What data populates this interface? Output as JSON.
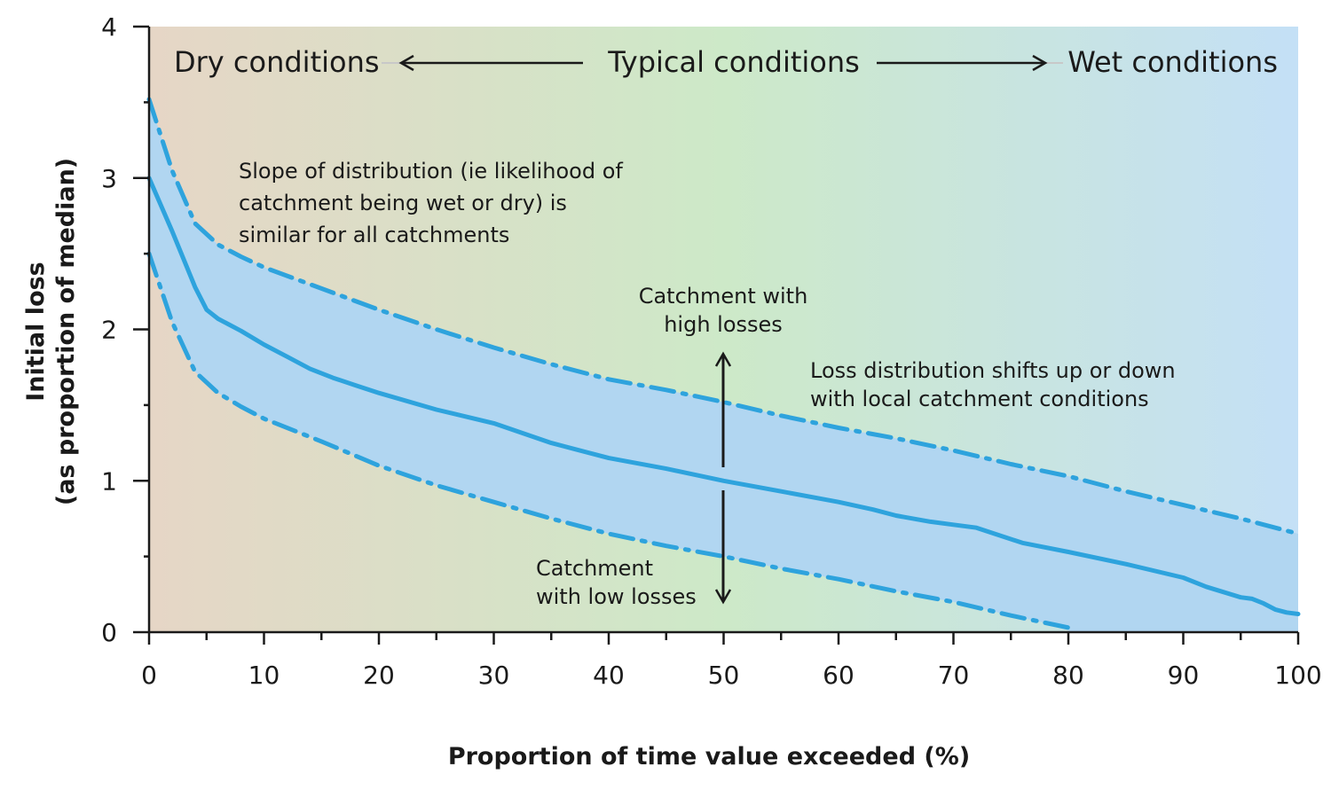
{
  "chart_data": {
    "type": "line",
    "title": "",
    "xlabel": "Proportion of time value exceeded (%)",
    "ylabel_lines": [
      "Initial loss",
      "(as proportion of median)"
    ],
    "xlim": [
      0,
      100
    ],
    "ylim": [
      0,
      4
    ],
    "x_ticks": [
      0,
      10,
      20,
      30,
      40,
      50,
      60,
      70,
      80,
      90,
      100
    ],
    "y_ticks": [
      0,
      1,
      2,
      3,
      4
    ],
    "grid": false,
    "background_gradient": [
      "#e6d6c6",
      "#cde9c8",
      "#c4e0f6"
    ],
    "band_color": "#b1d6f1",
    "line_color": "#2ea3dd",
    "series": [
      {
        "style": "solid",
        "x": [
          0,
          2,
          4,
          5,
          6,
          8,
          10,
          12,
          14,
          16,
          18,
          20,
          25,
          30,
          35,
          40,
          45,
          50,
          55,
          60,
          63,
          65,
          68,
          70,
          72,
          76,
          80,
          85,
          90,
          92,
          95,
          96,
          97,
          98,
          99,
          100
        ],
        "y": [
          3.0,
          2.65,
          2.28,
          2.13,
          2.07,
          1.99,
          1.9,
          1.82,
          1.74,
          1.68,
          1.63,
          1.58,
          1.47,
          1.38,
          1.25,
          1.15,
          1.08,
          1.0,
          0.93,
          0.86,
          0.81,
          0.77,
          0.73,
          0.71,
          0.69,
          0.59,
          0.53,
          0.45,
          0.36,
          0.3,
          0.23,
          0.22,
          0.19,
          0.15,
          0.13,
          0.12
        ]
      },
      {
        "style": "dash-dot",
        "x": [
          0,
          2,
          4,
          6,
          8,
          10,
          15,
          20,
          25,
          30,
          35,
          40,
          45,
          50,
          55,
          60,
          65,
          70,
          75,
          80,
          85,
          90,
          95,
          100
        ],
        "y": [
          3.52,
          3.05,
          2.7,
          2.56,
          2.48,
          2.41,
          2.27,
          2.13,
          2.0,
          1.88,
          1.77,
          1.67,
          1.6,
          1.52,
          1.43,
          1.35,
          1.28,
          1.2,
          1.11,
          1.03,
          0.93,
          0.84,
          0.75,
          0.65
        ]
      },
      {
        "style": "dash-dot",
        "x": [
          0,
          2,
          4,
          6,
          8,
          10,
          15,
          20,
          25,
          30,
          35,
          40,
          45,
          50,
          55,
          60,
          65,
          70,
          75,
          80
        ],
        "y": [
          2.5,
          2.05,
          1.72,
          1.58,
          1.49,
          1.41,
          1.26,
          1.1,
          0.97,
          0.86,
          0.75,
          0.65,
          0.57,
          0.5,
          0.42,
          0.35,
          0.27,
          0.2,
          0.11,
          0.03
        ]
      }
    ],
    "condition_labels": {
      "dry": "Dry conditions",
      "typical": "Typical conditions",
      "wet": "Wet conditions"
    },
    "annotations": {
      "slope_note": [
        "Slope of distribution (ie likelihood of",
        "catchment being wet or dry) is",
        "similar for all catchments"
      ],
      "high_losses": [
        "Catchment with",
        "high losses"
      ],
      "low_losses": [
        "Catchment",
        "with low losses"
      ],
      "shift_note": [
        "Loss distribution shifts up or down",
        "with local catchment conditions"
      ]
    }
  }
}
